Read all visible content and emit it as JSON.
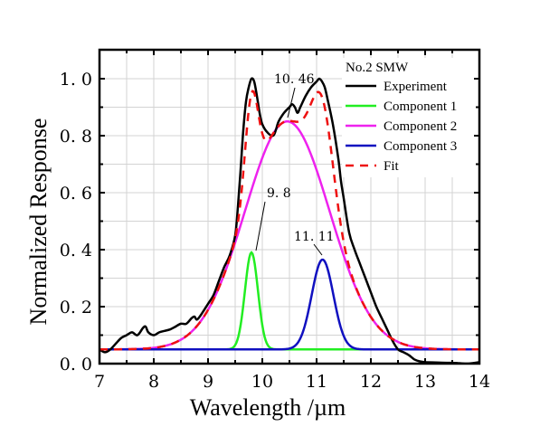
{
  "chart_data": {
    "type": "line",
    "title": "",
    "xlabel": "Wavelength /µm",
    "ylabel": "Normalized Response",
    "xlim": [
      7,
      14
    ],
    "ylim": [
      0,
      1.1
    ],
    "xticks": [
      7,
      8,
      9,
      10,
      11,
      12,
      13,
      14
    ],
    "xtick_labels": [
      "7",
      "8",
      "9",
      "10",
      "11",
      "12",
      "13",
      "14"
    ],
    "yticks": [
      0,
      0.2,
      0.4,
      0.6,
      0.8,
      1.0
    ],
    "ytick_labels": [
      "0. 0",
      "0. 2",
      "0. 4",
      "0. 6",
      "0. 8",
      "1. 0"
    ],
    "grid": true,
    "legend": {
      "title": "No.2 SMW",
      "placement": "top-right",
      "entries": [
        {
          "label": "Experiment",
          "color": "#000000",
          "style": "solid"
        },
        {
          "label": "Component 1",
          "color": "#22ee22",
          "style": "solid"
        },
        {
          "label": "Component 2",
          "color": "#ee22ee",
          "style": "solid"
        },
        {
          "label": "Component 3",
          "color": "#1010c0",
          "style": "solid"
        },
        {
          "label": "Fit",
          "color": "#ee1111",
          "style": "dashed"
        }
      ]
    },
    "baseline": 0.05,
    "components": [
      {
        "name": "Component 1",
        "center": 9.8,
        "amplitude": 0.34,
        "sigma": 0.12,
        "color": "#22ee22"
      },
      {
        "name": "Component 2",
        "center": 10.46,
        "amplitude": 0.8,
        "sigma": 0.78,
        "color": "#ee22ee"
      },
      {
        "name": "Component 3",
        "center": 11.11,
        "amplitude": 0.315,
        "sigma": 0.2,
        "color": "#1010c0"
      }
    ],
    "series": [
      {
        "name": "Experiment",
        "color": "#000000",
        "x": [
          7.0,
          7.1,
          7.2,
          7.3,
          7.4,
          7.5,
          7.6,
          7.7,
          7.8,
          7.85,
          7.9,
          8.0,
          8.1,
          8.2,
          8.3,
          8.4,
          8.5,
          8.6,
          8.7,
          8.75,
          8.8,
          8.9,
          9.0,
          9.1,
          9.2,
          9.3,
          9.4,
          9.5,
          9.55,
          9.6,
          9.65,
          9.7,
          9.75,
          9.8,
          9.85,
          9.9,
          9.95,
          10.0,
          10.1,
          10.2,
          10.25,
          10.3,
          10.4,
          10.5,
          10.55,
          10.6,
          10.65,
          10.7,
          10.8,
          10.9,
          11.0,
          11.05,
          11.1,
          11.15,
          11.2,
          11.3,
          11.4,
          11.45,
          11.5,
          11.6,
          11.7,
          11.8,
          11.9,
          12.0,
          12.1,
          12.2,
          12.3,
          12.4,
          12.5,
          12.6,
          12.7,
          12.8,
          12.9,
          13.0,
          13.2,
          13.4,
          13.6,
          13.8,
          14.0
        ],
        "y": [
          0.05,
          0.04,
          0.05,
          0.07,
          0.09,
          0.1,
          0.11,
          0.1,
          0.125,
          0.13,
          0.11,
          0.1,
          0.11,
          0.115,
          0.12,
          0.13,
          0.14,
          0.14,
          0.16,
          0.165,
          0.155,
          0.18,
          0.21,
          0.24,
          0.29,
          0.34,
          0.38,
          0.45,
          0.55,
          0.68,
          0.82,
          0.92,
          0.97,
          1.0,
          0.99,
          0.94,
          0.88,
          0.84,
          0.81,
          0.8,
          0.82,
          0.85,
          0.88,
          0.9,
          0.91,
          0.9,
          0.88,
          0.9,
          0.94,
          0.97,
          0.99,
          1.0,
          0.99,
          0.97,
          0.93,
          0.84,
          0.72,
          0.64,
          0.58,
          0.46,
          0.4,
          0.35,
          0.3,
          0.25,
          0.2,
          0.16,
          0.12,
          0.08,
          0.05,
          0.04,
          0.03,
          0.015,
          0.008,
          0.005,
          0.004,
          0.003,
          0.002,
          0.0,
          0.005
        ]
      },
      {
        "name": "Fit",
        "color": "#ee1111",
        "style": "dashed",
        "derived_from": "baseline + sum of components"
      }
    ],
    "annotations": [
      {
        "text": "10. 46",
        "x": 10.46,
        "y": 0.85
      },
      {
        "text": "9. 8",
        "x": 9.8,
        "y": 0.39
      },
      {
        "text": "11. 11",
        "x": 11.11,
        "y": 0.365
      }
    ]
  }
}
